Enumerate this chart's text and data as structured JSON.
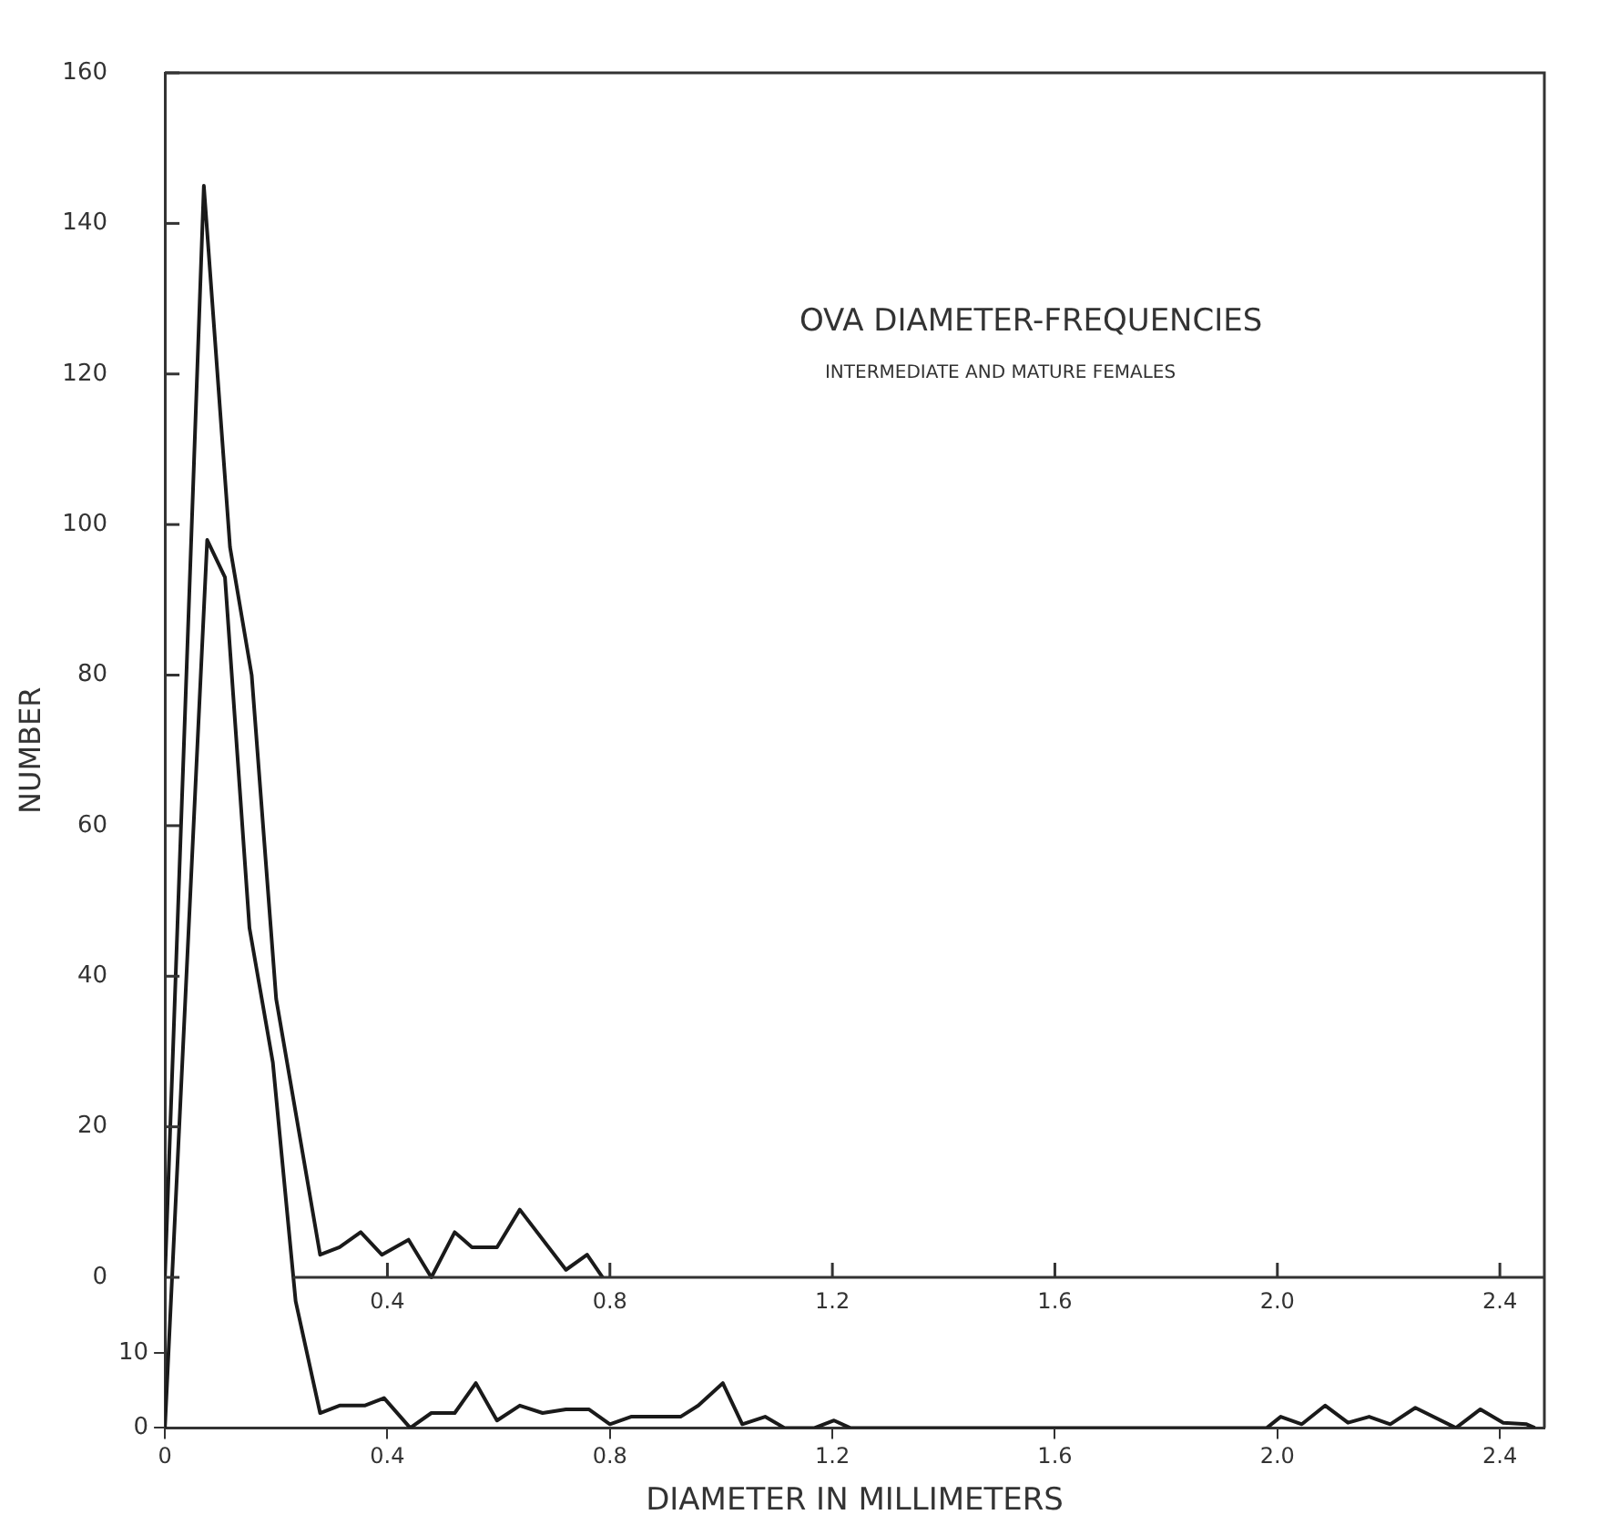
{
  "chart_data": {
    "type": "line",
    "title": "OVA DIAMETER-FREQUENCIES",
    "subtitle": "INTERMEDIATE AND MATURE FEMALES",
    "xlabel": "DIAMETER IN MILLIMETERS",
    "ylabel": "NUMBER",
    "xlim": [
      0,
      2.48
    ],
    "xticks": [
      0,
      0.4,
      0.8,
      1.2,
      1.6,
      {
        "value": 2,
        "label": "2.0"
      },
      2.4
    ],
    "x2lim": [
      0.23,
      2.48
    ],
    "x2ticks": [
      0.4,
      0.8,
      1.2,
      1.6,
      {
        "value": 2,
        "label": "2.0"
      },
      2.4
    ],
    "ylim": [
      -20,
      160
    ],
    "yticks": [
      0,
      20,
      40,
      60,
      80,
      100,
      120,
      140,
      160
    ],
    "y2lim": [
      0,
      181.6
    ],
    "y2ticks": [
      0,
      10
    ],
    "grid": false,
    "legend": false,
    "marker": "none",
    "line_style": "solid",
    "series": [
      {
        "color": "#1a1a1a",
        "x": [
          0,
          0.07,
          0.117,
          0.156,
          0.2,
          0.279,
          0.314,
          0.352,
          0.39,
          0.438,
          0.479,
          0.521,
          0.552,
          0.597,
          0.638,
          0.721,
          0.759,
          0.787
        ],
        "values": [
          0,
          145,
          97,
          80,
          37,
          3,
          4,
          6,
          3,
          5,
          0,
          6,
          4,
          4,
          9,
          1,
          3,
          0
        ]
      },
      {
        "color": "#1a1a1a",
        "axis": "y2",
        "x": [
          0,
          0.076,
          0.108,
          0.152,
          0.194,
          0.235,
          0.279,
          0.314,
          0.359,
          0.394,
          0.441,
          0.479,
          0.521,
          0.559,
          0.597,
          0.638,
          0.679,
          0.721,
          0.762,
          0.8,
          0.838,
          0.927,
          0.959,
          1.003,
          1.038,
          1.079,
          1.114,
          1.168,
          1.203,
          1.232,
          1.981,
          2.006,
          2.044,
          2.086,
          2.127,
          2.165,
          2.203,
          2.248,
          2.321,
          2.365,
          2.406,
          2.448,
          2.463
        ],
        "values": [
          0,
          119,
          114,
          67,
          49,
          17,
          2,
          3,
          3,
          4,
          0,
          2,
          2,
          6,
          1,
          3,
          2,
          2.5,
          2.5,
          0.5,
          1.5,
          1.5,
          3,
          6,
          0.5,
          1.5,
          0,
          0,
          1,
          0,
          0,
          1.5,
          0.5,
          3,
          0.7,
          1.5,
          0.5,
          2.7,
          0,
          2.5,
          0.7,
          0.5,
          0
        ]
      }
    ]
  }
}
